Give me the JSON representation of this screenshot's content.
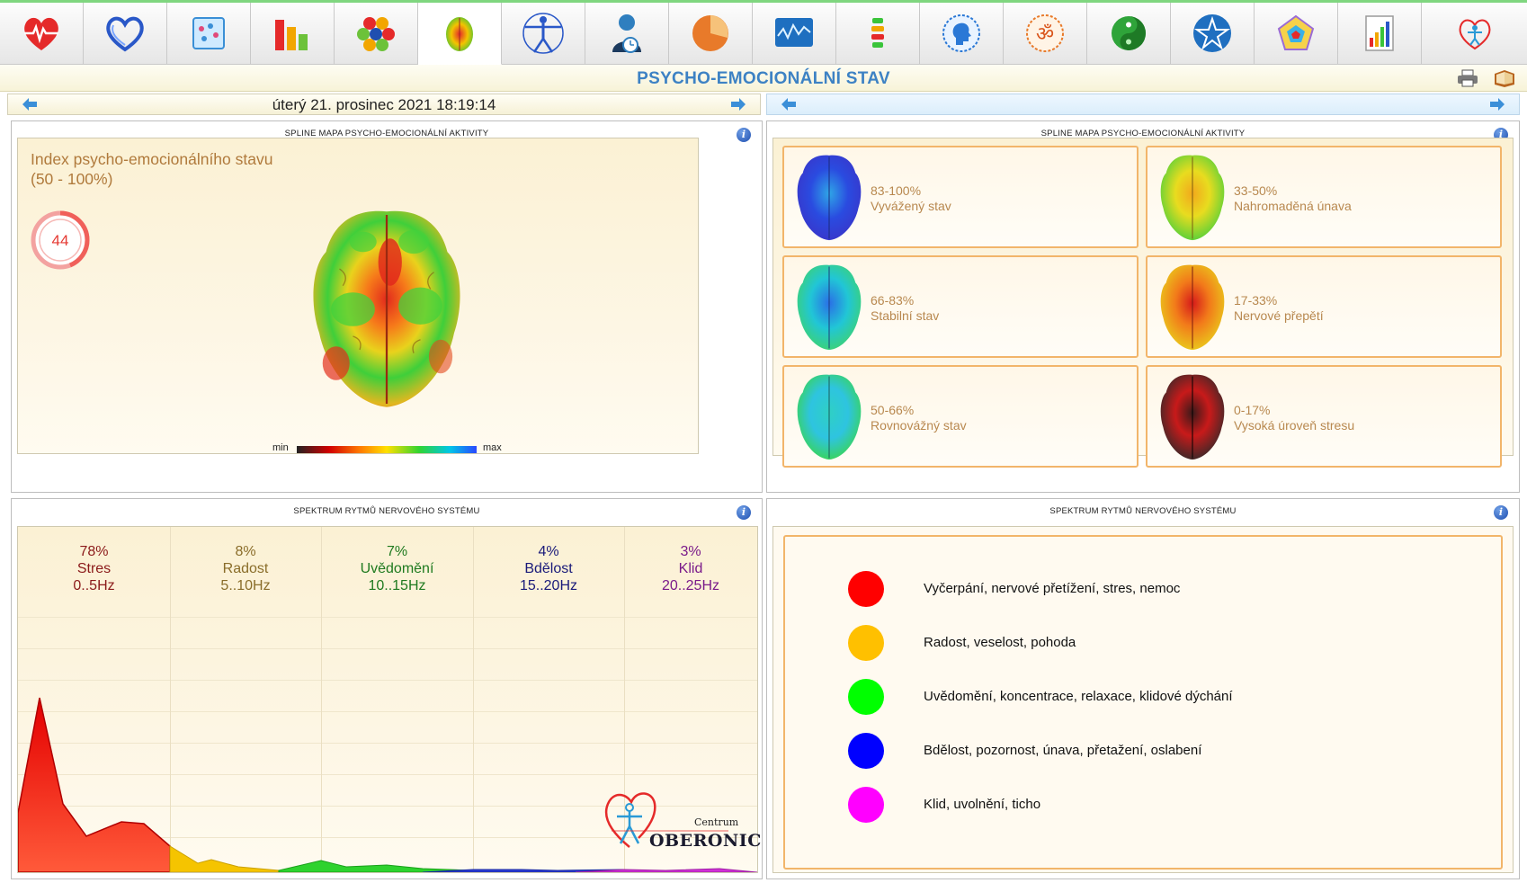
{
  "toolbar": {
    "items": [
      {
        "name": "cardio"
      },
      {
        "name": "heart-rhythm"
      },
      {
        "name": "analysis"
      },
      {
        "name": "bar-chart"
      },
      {
        "name": "cells"
      },
      {
        "name": "brain-map"
      },
      {
        "name": "vitruvian"
      },
      {
        "name": "person"
      },
      {
        "name": "pie"
      },
      {
        "name": "wave-monitor"
      },
      {
        "name": "spine"
      },
      {
        "name": "head-profile"
      },
      {
        "name": "om"
      },
      {
        "name": "yin-yang"
      },
      {
        "name": "star"
      },
      {
        "name": "polygon"
      },
      {
        "name": "report"
      },
      {
        "name": "oberonic"
      }
    ],
    "active_index": 5
  },
  "header": {
    "title": "PSYCHO-EMOCIONÁLNÍ STAV"
  },
  "datebar": {
    "date": "úterý 21. prosinec 2021 18:19:14"
  },
  "panel_activity": {
    "heading": "SPLINE MAPA PSYCHO-EMOCIONÁLNÍ AKTIVITY",
    "index_title": "Index psycho-emocionálního stavu",
    "index_range": "(50 - 100%)",
    "index_value": "44",
    "index_fraction": 0.44,
    "legend_min": "min",
    "legend_max": "max"
  },
  "panel_reference": {
    "heading": "SPLINE MAPA PSYCHO-EMOCIONÁLNÍ AKTIVITY",
    "cards": [
      {
        "range": "83-100%",
        "label": "Vyvážený stav"
      },
      {
        "range": "33-50%",
        "label": "Nahromaděná únava"
      },
      {
        "range": "66-83%",
        "label": "Stabilní stav"
      },
      {
        "range": "17-33%",
        "label": "Nervové přepětí"
      },
      {
        "range": "50-66%",
        "label": "Rovnovážný stav"
      },
      {
        "range": "0-17%",
        "label": "Vysoká úroveň stresu"
      }
    ]
  },
  "panel_spectrum": {
    "heading": "SPEKTRUM RYTMŮ NERVOVÉHO SYSTÉMU",
    "bands": [
      {
        "percent": "78%",
        "name": "Stres",
        "range": "0..5Hz",
        "color": "#8b1a1a"
      },
      {
        "percent": "8%",
        "name": "Radost",
        "range": "5..10Hz",
        "color": "#8a6d2a"
      },
      {
        "percent": "7%",
        "name": "Uvědomění",
        "range": "10..15Hz",
        "color": "#1f7a1f"
      },
      {
        "percent": "4%",
        "name": "Bdělost",
        "range": "15..20Hz",
        "color": "#1a1a7a"
      },
      {
        "percent": "3%",
        "name": "Klid",
        "range": "20..25Hz",
        "color": "#7a1a8a"
      }
    ],
    "logo_centrum": "Centrum",
    "logo_name": "OBERONIC"
  },
  "panel_legend": {
    "heading": "SPEKTRUM RYTMŮ NERVOVÉHO SYSTÉMU",
    "items": [
      {
        "color": "#ff0000",
        "text": "Vyčerpání, nervové přetížení, stres, nemoc"
      },
      {
        "color": "#ffc000",
        "text": "Radost, veselost, pohoda"
      },
      {
        "color": "#00ff00",
        "text": "Uvědomění, koncentrace, relaxace, klidové dýchání"
      },
      {
        "color": "#0000ff",
        "text": "Bdělost, pozornost, únava, přetažení, oslabení"
      },
      {
        "color": "#ff00ff",
        "text": "Klid, uvolnění, ticho"
      }
    ]
  }
}
